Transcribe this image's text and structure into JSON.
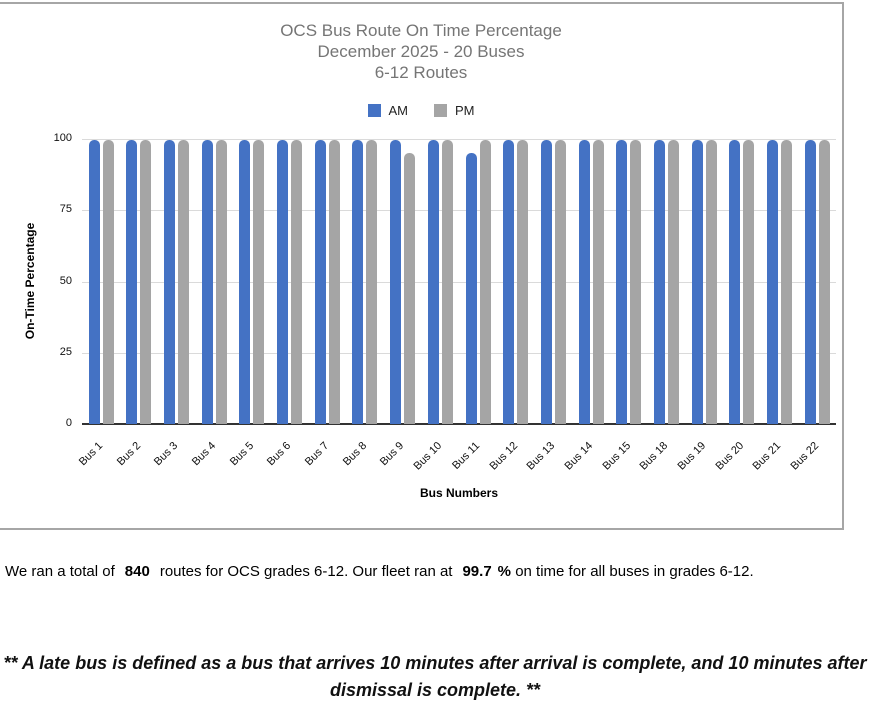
{
  "chart_data": {
    "type": "bar",
    "title_lines": [
      "OCS Bus Route On Time Percentage",
      "December 2025 - 20 Buses",
      "6-12 Routes"
    ],
    "categories": [
      "Bus 1",
      "Bus 2",
      "Bus 3",
      "Bus 4",
      "Bus 5",
      "Bus 6",
      "Bus 7",
      "Bus 8",
      "Bus 9",
      "Bus 10",
      "Bus 11",
      "Bus 12",
      "Bus 13",
      "Bus 14",
      "Bus 15",
      "Bus 18",
      "Bus 19",
      "Bus 20",
      "Bus 21",
      "Bus 22"
    ],
    "series": [
      {
        "name": "AM",
        "color": "#4472C4",
        "values": [
          99.5,
          99.5,
          99.5,
          99.5,
          99.5,
          99.5,
          99.5,
          99.5,
          99.5,
          99.5,
          95,
          99.5,
          99.5,
          99.5,
          99.5,
          99.5,
          99.5,
          99.5,
          99.5,
          99.5
        ]
      },
      {
        "name": "PM",
        "color": "#A5A5A5",
        "values": [
          99.5,
          99.5,
          99.5,
          99.5,
          99.5,
          99.5,
          99.5,
          99.5,
          95,
          99.5,
          99.5,
          99.5,
          99.5,
          99.5,
          99.5,
          99.5,
          99.5,
          99.5,
          99.5,
          99.5
        ]
      }
    ],
    "xlabel": "Bus Numbers",
    "ylabel": "On-Time Percentage",
    "yticks": [
      0,
      25,
      50,
      75,
      100
    ],
    "ylim": [
      0,
      100
    ],
    "grid": true,
    "legend_position": "top-center"
  },
  "summary": {
    "part1": "We ran a total of",
    "routes_total": "840",
    "part2": "routes for OCS grades 6-12. Our fleet ran at",
    "on_time_percent": "99.7",
    "percent_sign": "%",
    "part3": "on time for all buses in grades 6-12."
  },
  "footnote": {
    "line1": "** A late bus is defined as a bus that arrives 10 minutes after arrival is complete, and 10 minutes after",
    "line2": "dismissal is complete. **"
  }
}
